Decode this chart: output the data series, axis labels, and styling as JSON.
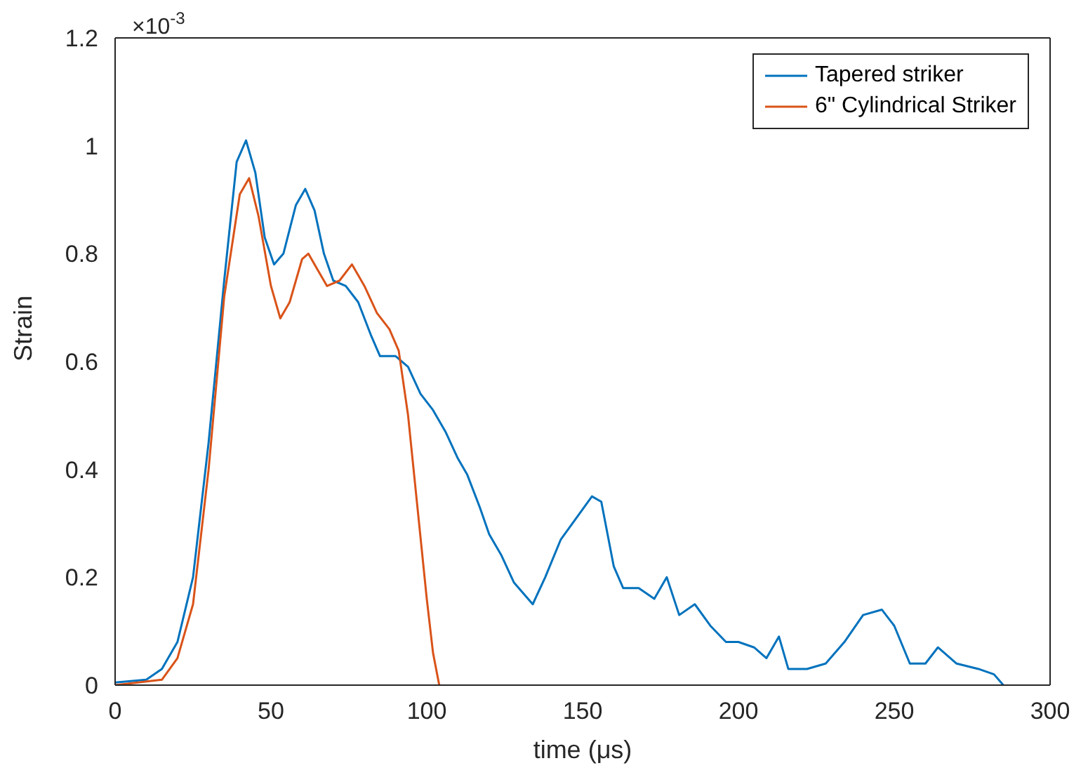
{
  "chart_data": {
    "type": "line",
    "xlabel": "time (μs)",
    "ylabel": "Strain",
    "annotations": [
      "×10$^{-3}$"
    ],
    "xlim": [
      0,
      300
    ],
    "xticks": [
      0,
      50,
      100,
      150,
      200,
      250,
      300
    ],
    "ylim": [
      0,
      1.2
    ],
    "yticks": [
      0,
      0.2,
      0.4,
      0.6,
      0.8,
      1,
      1.2
    ],
    "grid": false,
    "legend": "top right",
    "marker": "none",
    "line_style": "solid",
    "series": [
      {
        "name": "Tapered striker",
        "color": "#0072bd",
        "x": [
          0,
          10,
          15,
          20,
          25,
          30,
          35,
          39,
          42,
          45,
          48,
          51,
          54,
          58,
          61,
          64,
          67,
          70,
          74,
          78,
          82,
          85,
          90,
          94,
          98,
          102,
          106,
          110,
          113,
          117,
          120,
          124,
          128,
          134,
          138,
          143,
          148,
          153,
          156,
          160,
          163,
          168,
          173,
          177,
          181,
          186,
          191,
          196,
          200,
          205,
          209,
          213,
          216,
          222,
          228,
          234,
          240,
          246,
          250,
          255,
          260,
          264,
          270,
          277,
          282,
          285
        ],
        "values": [
          0.005,
          0.01,
          0.03,
          0.08,
          0.2,
          0.45,
          0.75,
          0.97,
          1.01,
          0.95,
          0.83,
          0.78,
          0.8,
          0.89,
          0.92,
          0.88,
          0.8,
          0.75,
          0.74,
          0.71,
          0.65,
          0.61,
          0.61,
          0.59,
          0.54,
          0.51,
          0.47,
          0.42,
          0.39,
          0.33,
          0.28,
          0.24,
          0.19,
          0.15,
          0.2,
          0.27,
          0.31,
          0.35,
          0.34,
          0.22,
          0.18,
          0.18,
          0.16,
          0.2,
          0.13,
          0.15,
          0.11,
          0.08,
          0.08,
          0.07,
          0.05,
          0.09,
          0.03,
          0.03,
          0.04,
          0.08,
          0.13,
          0.14,
          0.11,
          0.04,
          0.04,
          0.07,
          0.04,
          0.03,
          0.02,
          0
        ]
      },
      {
        "name": "6\" Cylindrical Striker",
        "color": "#d95319",
        "x": [
          0,
          15,
          20,
          25,
          30,
          35,
          40,
          43,
          46,
          50,
          53,
          56,
          60,
          62,
          65,
          68,
          72,
          76,
          80,
          84,
          88,
          91,
          94,
          97,
          100,
          102,
          104
        ],
        "values": [
          0,
          0.01,
          0.05,
          0.15,
          0.4,
          0.72,
          0.91,
          0.94,
          0.87,
          0.74,
          0.68,
          0.71,
          0.79,
          0.8,
          0.77,
          0.74,
          0.75,
          0.78,
          0.74,
          0.69,
          0.66,
          0.62,
          0.5,
          0.33,
          0.16,
          0.06,
          0
        ]
      }
    ]
  }
}
